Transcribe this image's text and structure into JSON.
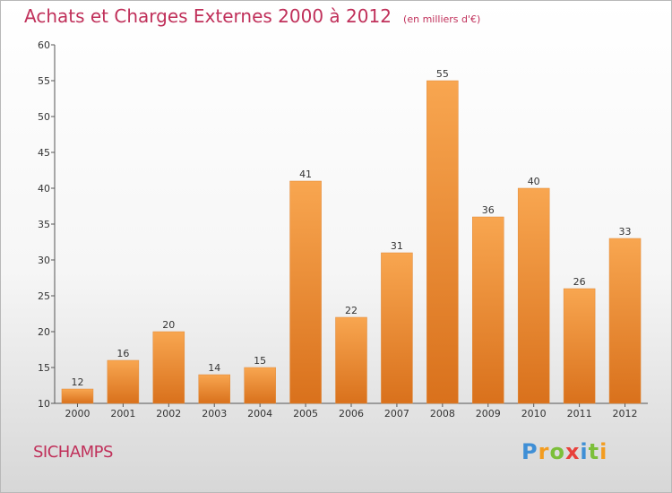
{
  "title": "Achats et Charges Externes 2000 à 2012",
  "subtitle": "(en milliers d'€)",
  "commune": "SICHAMPS",
  "logo": {
    "letters": [
      "P",
      "r",
      "o",
      "x",
      "i",
      "t",
      "i"
    ],
    "colors": [
      "#3f8fd6",
      "#f39c20",
      "#7cbf3a",
      "#e8413c",
      "#3f8fd6",
      "#7cbf3a",
      "#f39c20"
    ]
  },
  "colors": {
    "bar_top": "#f8a650",
    "bar_bottom": "#d9711c",
    "title": "#c0305a"
  },
  "chart_data": {
    "type": "bar",
    "categories": [
      "2000",
      "2001",
      "2002",
      "2003",
      "2004",
      "2005",
      "2006",
      "2007",
      "2008",
      "2009",
      "2010",
      "2011",
      "2012"
    ],
    "values": [
      12,
      16,
      20,
      14,
      15,
      41,
      22,
      31,
      55,
      36,
      40,
      26,
      33
    ],
    "ylim": [
      10,
      60
    ],
    "yticks": [
      10,
      15,
      20,
      25,
      30,
      35,
      40,
      45,
      50,
      55,
      60
    ],
    "grid": false
  }
}
